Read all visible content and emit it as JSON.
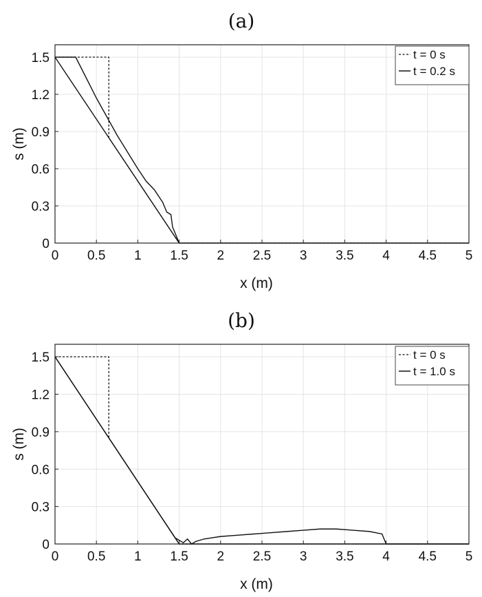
{
  "chart_data": [
    {
      "type": "line",
      "title": "(a)",
      "xlabel": "x (m)",
      "ylabel": "s (m)",
      "xlim": [
        0,
        5
      ],
      "ylim": [
        0,
        1.6
      ],
      "x_ticks": [
        0,
        0.5,
        1,
        1.5,
        2,
        2.5,
        3,
        3.5,
        4,
        4.5,
        5
      ],
      "x_tick_labels": [
        "0",
        "0.5",
        "1",
        "1.5",
        "2",
        "2.5",
        "3",
        "3.5",
        "4",
        "4.5",
        "5"
      ],
      "y_ticks": [
        0,
        0.3,
        0.6,
        0.9,
        1.2,
        1.5
      ],
      "y_tick_labels": [
        "0",
        "0.3",
        "0.6",
        "0.9",
        "1.2",
        "1.5"
      ],
      "grid": true,
      "legend_position": "top-right",
      "series": [
        {
          "name": "t = 0 s",
          "style": "dotted",
          "x": [
            0,
            0.65,
            0.65,
            1.5,
            5
          ],
          "y": [
            1.5,
            1.5,
            0.85,
            0,
            0
          ]
        },
        {
          "name": "t = 0.2 s",
          "style": "solid",
          "x": [
            0,
            0.25,
            0.5,
            0.75,
            1.0,
            1.1,
            1.2,
            1.3,
            1.35,
            1.4,
            1.42,
            1.5,
            5
          ],
          "y": [
            1.5,
            1.5,
            1.17,
            0.87,
            0.6,
            0.5,
            0.43,
            0.33,
            0.25,
            0.23,
            0.13,
            0,
            0
          ]
        },
        {
          "name": "",
          "style": "solid",
          "x": [
            0,
            1.5
          ],
          "y": [
            1.5,
            0
          ]
        }
      ]
    },
    {
      "type": "line",
      "title": "(b)",
      "xlabel": "x (m)",
      "ylabel": "s (m)",
      "xlim": [
        0,
        5
      ],
      "ylim": [
        0,
        1.6
      ],
      "x_ticks": [
        0,
        0.5,
        1,
        1.5,
        2,
        2.5,
        3,
        3.5,
        4,
        4.5,
        5
      ],
      "x_tick_labels": [
        "0",
        "0.5",
        "1",
        "1.5",
        "2",
        "2.5",
        "3",
        "3.5",
        "4",
        "4.5",
        "5"
      ],
      "y_ticks": [
        0,
        0.3,
        0.6,
        0.9,
        1.2,
        1.5
      ],
      "y_tick_labels": [
        "0",
        "0.3",
        "0.6",
        "0.9",
        "1.2",
        "1.5"
      ],
      "grid": true,
      "legend_position": "top-right",
      "series": [
        {
          "name": "t = 0 s",
          "style": "dotted",
          "x": [
            0,
            0.65,
            0.65,
            1.5,
            5
          ],
          "y": [
            1.5,
            1.5,
            0.85,
            0,
            0
          ]
        },
        {
          "name": "t = 1.0 s",
          "style": "solid",
          "x": [
            0,
            0.3,
            0.6,
            0.9,
            1.2,
            1.45,
            1.55,
            1.6,
            1.65,
            1.7,
            1.8,
            1.9,
            2.0,
            2.2,
            2.4,
            2.6,
            2.8,
            3.0,
            3.2,
            3.4,
            3.6,
            3.8,
            3.95,
            4.0,
            5
          ],
          "y": [
            1.5,
            1.2,
            0.9,
            0.6,
            0.3,
            0.05,
            0.01,
            0.04,
            0.0,
            0.02,
            0.04,
            0.05,
            0.06,
            0.07,
            0.08,
            0.09,
            0.1,
            0.11,
            0.12,
            0.12,
            0.11,
            0.1,
            0.08,
            0.0,
            0.0
          ]
        },
        {
          "name": "",
          "style": "solid",
          "x": [
            0,
            1.5,
            5
          ],
          "y": [
            1.5,
            0,
            0
          ]
        }
      ]
    }
  ]
}
